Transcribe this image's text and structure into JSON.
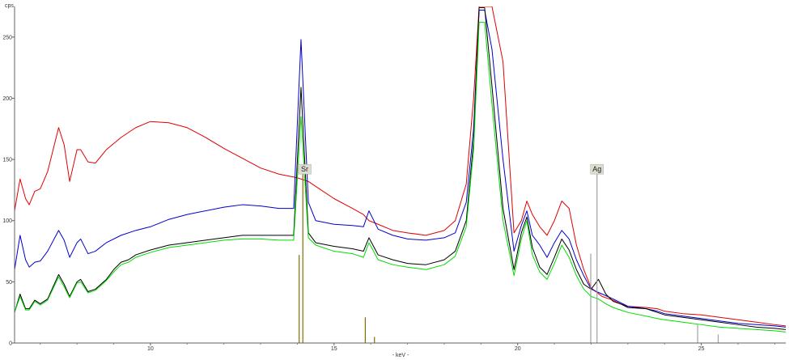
{
  "chart_data": {
    "type": "line",
    "ylabel": "cps",
    "xlabel": "- keV -",
    "xlim": [
      6.3,
      27.3
    ],
    "ylim": [
      0,
      275
    ],
    "x_ticks": [
      10,
      15,
      20,
      25
    ],
    "y_ticks": [
      0,
      50,
      100,
      150,
      200,
      250
    ],
    "grid": false,
    "series": [
      {
        "color": "#e00000",
        "x": [
          6.3,
          6.45,
          6.6,
          6.7,
          6.85,
          7.0,
          7.2,
          7.5,
          7.65,
          7.8,
          8.0,
          8.1,
          8.3,
          8.5,
          8.8,
          9.2,
          9.6,
          10.0,
          10.5,
          11.0,
          11.5,
          12.0,
          12.5,
          13.0,
          13.5,
          14.0,
          14.3,
          14.6,
          15.0,
          15.5,
          15.8,
          15.95,
          16.2,
          16.6,
          17.0,
          17.5,
          18.0,
          18.3,
          18.6,
          18.8,
          18.95,
          19.1,
          19.3,
          19.6,
          19.9,
          20.1,
          20.25,
          20.4,
          20.6,
          20.8,
          21.0,
          21.2,
          21.4,
          21.6,
          21.8,
          22.0,
          22.3,
          22.6,
          22.8,
          23.0,
          23.5,
          23.8,
          24.0,
          24.5,
          25.0,
          25.5,
          26.0,
          26.5,
          27.0,
          27.3
        ],
        "y": [
          108,
          134,
          118,
          113,
          124,
          126,
          140,
          176,
          162,
          132,
          158,
          158,
          148,
          147,
          158,
          168,
          176,
          181,
          180,
          176,
          168,
          159,
          151,
          143,
          138,
          135,
          132,
          126,
          118,
          110,
          105,
          100,
          97,
          92,
          90,
          88,
          92,
          100,
          130,
          200,
          275,
          275,
          275,
          230,
          90,
          100,
          116,
          105,
          95,
          88,
          100,
          116,
          110,
          80,
          60,
          45,
          38,
          35,
          32,
          30,
          29,
          28,
          26,
          24,
          23,
          21,
          19,
          17,
          15,
          14
        ]
      },
      {
        "color": "#0000cc",
        "x": [
          6.3,
          6.45,
          6.6,
          6.7,
          6.85,
          7.0,
          7.2,
          7.5,
          7.65,
          7.8,
          8.0,
          8.1,
          8.3,
          8.5,
          8.8,
          9.2,
          9.6,
          10.0,
          10.5,
          11.0,
          12.0,
          12.5,
          13.0,
          13.5,
          13.9,
          14.1,
          14.3,
          14.5,
          15.0,
          15.5,
          15.8,
          15.95,
          16.2,
          16.6,
          17.0,
          17.5,
          18.0,
          18.3,
          18.6,
          18.8,
          18.95,
          19.1,
          19.3,
          19.6,
          19.9,
          20.1,
          20.25,
          20.4,
          20.6,
          20.8,
          21.0,
          21.2,
          21.4,
          21.6,
          21.8,
          22.0,
          22.3,
          22.6,
          22.8,
          23.0,
          23.5,
          23.8,
          24.0,
          24.5,
          25.0,
          25.5,
          26.0,
          26.5,
          27.0,
          27.3
        ],
        "y": [
          60,
          88,
          68,
          62,
          66,
          67,
          75,
          92,
          84,
          70,
          82,
          85,
          73,
          75,
          82,
          88,
          92,
          95,
          101,
          105,
          111,
          113,
          112,
          110,
          110,
          248,
          115,
          100,
          97,
          96,
          95,
          108,
          93,
          88,
          85,
          84,
          86,
          90,
          115,
          175,
          272,
          272,
          240,
          150,
          75,
          96,
          108,
          88,
          80,
          70,
          82,
          92,
          85,
          68,
          55,
          44,
          40,
          36,
          33,
          30,
          28,
          26,
          24,
          22,
          20,
          18,
          16,
          15,
          14,
          13
        ]
      },
      {
        "color": "#000000",
        "x": [
          6.3,
          6.45,
          6.6,
          6.7,
          6.85,
          7.0,
          7.2,
          7.5,
          7.65,
          7.8,
          8.0,
          8.1,
          8.3,
          8.5,
          8.8,
          9.0,
          9.2,
          9.4,
          9.6,
          10.0,
          10.5,
          11.0,
          11.5,
          12.0,
          12.5,
          13.0,
          13.5,
          13.9,
          14.1,
          14.3,
          14.5,
          15.0,
          15.5,
          15.8,
          15.95,
          16.2,
          16.6,
          17.0,
          17.5,
          18.0,
          18.3,
          18.6,
          18.8,
          18.95,
          19.1,
          19.3,
          19.6,
          19.9,
          20.1,
          20.25,
          20.4,
          20.6,
          20.8,
          21.0,
          21.2,
          21.4,
          21.6,
          21.8,
          22.0,
          22.2,
          22.4,
          22.6,
          22.8,
          23.0,
          23.5,
          23.8,
          24.0,
          24.5,
          25.0,
          25.5,
          26.0,
          26.5,
          27.0,
          27.3
        ],
        "y": [
          25,
          40,
          28,
          28,
          35,
          32,
          36,
          56,
          48,
          38,
          50,
          52,
          42,
          44,
          52,
          60,
          66,
          68,
          72,
          76,
          80,
          82,
          84,
          86,
          88,
          88,
          88,
          88,
          209,
          90,
          82,
          79,
          77,
          75,
          86,
          72,
          68,
          65,
          64,
          68,
          75,
          100,
          165,
          274,
          274,
          210,
          110,
          60,
          90,
          103,
          78,
          62,
          56,
          70,
          85,
          76,
          60,
          48,
          44,
          52,
          40,
          34,
          32,
          29,
          28,
          25,
          23,
          21,
          19,
          17,
          15,
          13,
          12,
          11
        ]
      },
      {
        "color": "#00dd00",
        "x": [
          6.3,
          6.45,
          6.6,
          6.7,
          6.85,
          7.0,
          7.2,
          7.5,
          7.65,
          7.8,
          8.0,
          8.1,
          8.3,
          8.5,
          8.8,
          9.0,
          9.2,
          9.4,
          9.6,
          10.0,
          10.5,
          11.0,
          11.5,
          12.0,
          12.5,
          13.0,
          13.5,
          13.9,
          14.1,
          14.3,
          14.5,
          15.0,
          15.5,
          15.8,
          15.95,
          16.2,
          16.6,
          17.0,
          17.5,
          18.0,
          18.3,
          18.6,
          18.8,
          18.95,
          19.1,
          19.3,
          19.6,
          19.9,
          20.1,
          20.25,
          20.4,
          20.6,
          20.8,
          21.0,
          21.2,
          21.4,
          21.6,
          21.8,
          22.0,
          22.2,
          22.4,
          22.6,
          22.8,
          23.0,
          23.5,
          23.8,
          24.0,
          24.5,
          25.0,
          25.5,
          26.0,
          26.5,
          27.0,
          27.3
        ],
        "y": [
          25,
          38,
          27,
          27,
          34,
          31,
          35,
          54,
          46,
          37,
          49,
          50,
          41,
          43,
          51,
          58,
          64,
          66,
          70,
          74,
          78,
          80,
          82,
          84,
          85,
          85,
          84,
          84,
          185,
          86,
          80,
          75,
          73,
          70,
          82,
          68,
          64,
          62,
          60,
          64,
          71,
          95,
          158,
          262,
          262,
          195,
          100,
          55,
          85,
          100,
          72,
          58,
          52,
          65,
          80,
          70,
          55,
          44,
          38,
          36,
          32,
          29,
          27,
          25,
          22,
          20,
          19,
          17,
          15,
          13,
          12,
          11,
          10,
          9
        ]
      }
    ],
    "markers": [
      {
        "label": "Sr",
        "lines": [
          {
            "x": 14.05,
            "y": 72
          },
          {
            "x": 14.15,
            "y": 142
          },
          {
            "x": 15.85,
            "y": 21
          },
          {
            "x": 16.1,
            "y": 5
          }
        ],
        "color": "#807000",
        "label_x": 14.2,
        "label_y": 142
      },
      {
        "label": "Ag",
        "lines": [
          {
            "x": 21.99,
            "y": 73
          },
          {
            "x": 22.16,
            "y": 142
          },
          {
            "x": 24.9,
            "y": 15
          },
          {
            "x": 25.46,
            "y": 7
          }
        ],
        "color": "#a0a0a0",
        "label_x": 22.16,
        "label_y": 142
      }
    ]
  }
}
